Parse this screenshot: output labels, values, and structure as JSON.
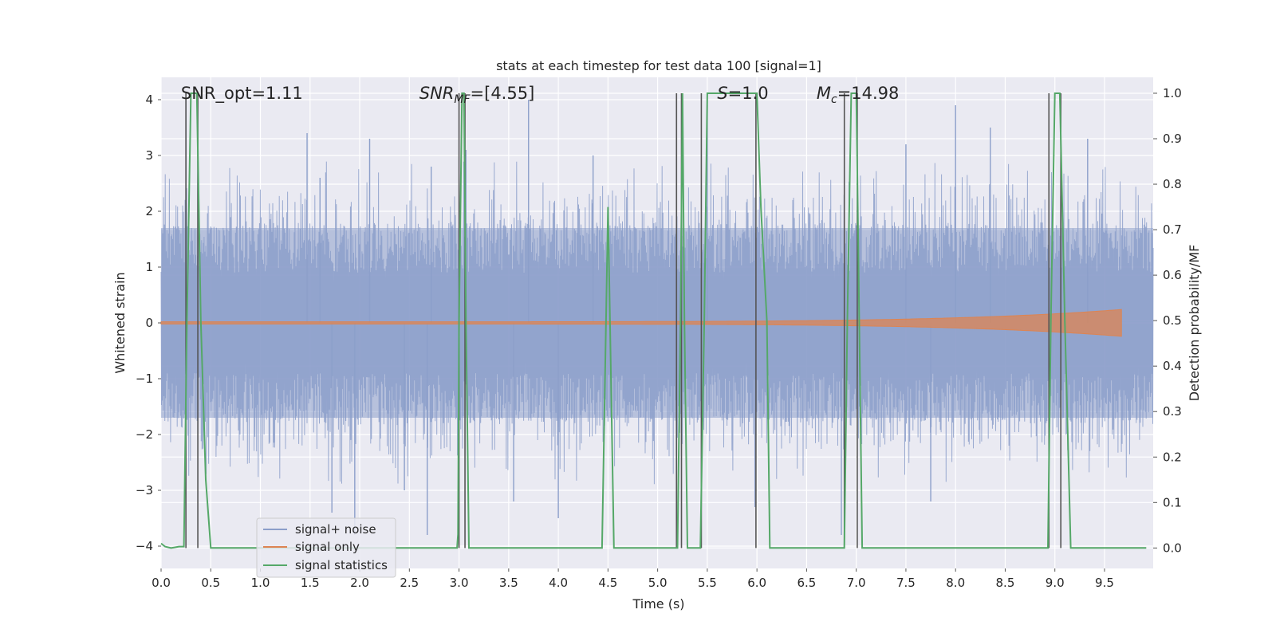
{
  "chart_data": {
    "type": "line",
    "title": "stats at each timestep for test data 100 [signal=1]",
    "xlabel": "Time (s)",
    "ylabel": "Whitened strain",
    "y2label": "Detection probability/MF",
    "xlim": [
      0.0,
      9.99
    ],
    "ylim": [
      -4.4,
      4.4
    ],
    "y2lim": [
      -0.045,
      1.035
    ],
    "x_ticks": [
      0.0,
      0.5,
      1.0,
      1.5,
      2.0,
      2.5,
      3.0,
      3.5,
      4.0,
      4.5,
      5.0,
      5.5,
      6.0,
      6.5,
      7.0,
      7.5,
      8.0,
      8.5,
      9.0,
      9.5
    ],
    "x_tick_labels": [
      "0.0",
      "0.5",
      "1.0",
      "1.5",
      "2.0",
      "2.5",
      "3.0",
      "3.5",
      "4.0",
      "4.5",
      "5.0",
      "5.5",
      "6.0",
      "6.5",
      "7.0",
      "7.5",
      "8.0",
      "8.5",
      "9.0",
      "9.5"
    ],
    "y_ticks": [
      -4,
      -3,
      -2,
      -1,
      0,
      1,
      2,
      3,
      4
    ],
    "y_tick_labels": [
      "−4",
      "−3",
      "−2",
      "−1",
      "0",
      "1",
      "2",
      "3",
      "4"
    ],
    "y2_ticks": [
      0.0,
      0.1,
      0.2,
      0.3,
      0.4,
      0.5,
      0.6,
      0.7,
      0.8,
      0.9,
      1.0
    ],
    "y2_tick_labels": [
      "0.0",
      "0.1",
      "0.2",
      "0.3",
      "0.4",
      "0.5",
      "0.6",
      "0.7",
      "0.8",
      "0.9",
      "1.0"
    ],
    "grid": true,
    "legend_position": "lower-left",
    "series": [
      {
        "name": "signal+ noise",
        "color": "#8c9fca",
        "axis": "left",
        "kind": "noise",
        "band_abs": 1.7,
        "spike_peaks": [
          {
            "x": 0.25,
            "y": 4.0
          },
          {
            "x": 0.37,
            "y": 2.9
          },
          {
            "x": 1.47,
            "y": 3.4
          },
          {
            "x": 1.6,
            "y": 2.6
          },
          {
            "x": 2.1,
            "y": 3.3
          },
          {
            "x": 2.72,
            "y": 2.8
          },
          {
            "x": 3.07,
            "y": 3.1
          },
          {
            "x": 3.7,
            "y": 4.0
          },
          {
            "x": 4.35,
            "y": 3.0
          },
          {
            "x": 5.5,
            "y": 3.9
          },
          {
            "x": 7.5,
            "y": 3.2
          },
          {
            "x": 8.0,
            "y": 3.9
          },
          {
            "x": 8.35,
            "y": 3.5
          },
          {
            "x": 9.33,
            "y": 3.3
          },
          {
            "x": 1.72,
            "y": -3.4
          },
          {
            "x": 1.95,
            "y": -3.8
          },
          {
            "x": 2.68,
            "y": -3.8
          },
          {
            "x": 3.55,
            "y": -3.2
          },
          {
            "x": 4.0,
            "y": -3.5
          },
          {
            "x": 5.98,
            "y": -3.3
          },
          {
            "x": 6.85,
            "y": -3.8
          },
          {
            "x": 7.75,
            "y": -3.2
          },
          {
            "x": 2.45,
            "y": -3.0
          }
        ]
      },
      {
        "name": "signal only",
        "color": "#dd8452",
        "axis": "left",
        "kind": "chirp",
        "chirp": {
          "start": 0.0,
          "end": 9.67,
          "peak_amplitude": 0.22
        }
      },
      {
        "name": "signal statistics",
        "color": "#55a868",
        "axis": "right",
        "kind": "line",
        "points": [
          [
            0.0,
            0.01
          ],
          [
            0.04,
            0.003
          ],
          [
            0.1,
            0.0
          ],
          [
            0.18,
            0.003
          ],
          [
            0.23,
            0.003
          ],
          [
            0.26,
            0.5
          ],
          [
            0.3,
            1.0
          ],
          [
            0.36,
            1.0
          ],
          [
            0.4,
            0.5
          ],
          [
            0.45,
            0.15
          ],
          [
            0.5,
            0.0
          ],
          [
            2.98,
            0.0
          ],
          [
            2.99,
            0.03
          ],
          [
            3.0,
            0.5
          ],
          [
            3.03,
            1.0
          ],
          [
            3.05,
            1.0
          ],
          [
            3.07,
            0.5
          ],
          [
            3.1,
            0.0
          ],
          [
            4.44,
            0.0
          ],
          [
            4.5,
            0.75
          ],
          [
            4.56,
            0.0
          ],
          [
            5.2,
            0.0
          ],
          [
            5.23,
            0.5
          ],
          [
            5.25,
            1.0
          ],
          [
            5.27,
            0.5
          ],
          [
            5.3,
            0.0
          ],
          [
            5.43,
            0.0
          ],
          [
            5.47,
            0.5
          ],
          [
            5.5,
            1.0
          ],
          [
            6.0,
            1.0
          ],
          [
            6.04,
            0.75
          ],
          [
            6.1,
            0.5
          ],
          [
            6.13,
            0.0
          ],
          [
            6.88,
            0.0
          ],
          [
            6.91,
            0.5
          ],
          [
            6.95,
            1.0
          ],
          [
            7.0,
            1.0
          ],
          [
            7.03,
            0.5
          ],
          [
            7.06,
            0.0
          ],
          [
            8.93,
            0.0
          ],
          [
            8.96,
            0.5
          ],
          [
            9.0,
            1.0
          ],
          [
            9.05,
            1.0
          ],
          [
            9.1,
            0.5
          ],
          [
            9.16,
            0.0
          ],
          [
            9.92,
            0.0
          ]
        ]
      }
    ],
    "vlines": [
      {
        "x": 0.25,
        "y_top": 1.0
      },
      {
        "x": 0.37,
        "y_top": 1.0
      },
      {
        "x": 3.0,
        "y_top": 1.0
      },
      {
        "x": 3.06,
        "y_top": 1.0
      },
      {
        "x": 5.19,
        "y_top": 1.0
      },
      {
        "x": 5.24,
        "y_top": 1.0
      },
      {
        "x": 5.44,
        "y_top": 1.0
      },
      {
        "x": 5.99,
        "y_top": 1.0
      },
      {
        "x": 6.88,
        "y_top": 1.0
      },
      {
        "x": 7.01,
        "y_top": 1.0
      },
      {
        "x": 8.94,
        "y_top": 1.0
      },
      {
        "x": 9.06,
        "y_top": 1.0
      }
    ],
    "annotations": [
      {
        "id": "snr-opt",
        "prefix": "SNR_opt",
        "sub": "",
        "suffix": "=1.11",
        "italic": false,
        "x": 0.2
      },
      {
        "id": "snr-mf",
        "prefix": "SNR",
        "sub": "MF",
        "suffix": "=[4.55]",
        "italic": true,
        "x": 2.6
      },
      {
        "id": "s-value",
        "prefix": "S",
        "sub": "",
        "suffix": "=1.0",
        "italic": true,
        "x": 5.6
      },
      {
        "id": "mc-value",
        "prefix": "M",
        "sub": "c",
        "suffix": "=14.98",
        "italic": true,
        "x": 6.6
      }
    ]
  }
}
